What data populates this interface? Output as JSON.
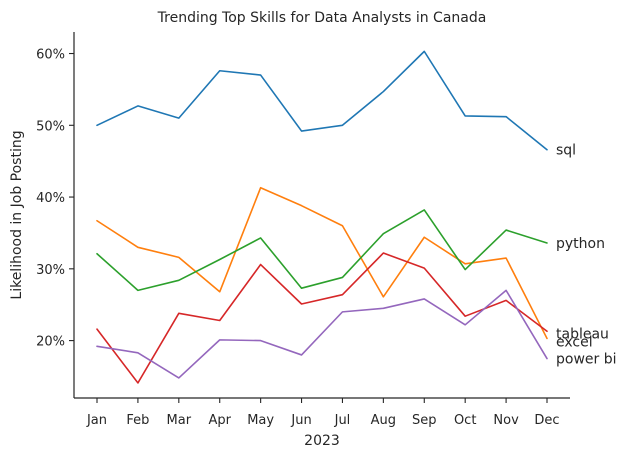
{
  "chart_data": {
    "type": "line",
    "title": "Trending Top Skills for Data Analysts in Canada",
    "xlabel": "2023",
    "ylabel": "Likelihood in Job Posting",
    "categories": [
      "Jan",
      "Feb",
      "Mar",
      "Apr",
      "May",
      "Jun",
      "Jul",
      "Aug",
      "Sep",
      "Oct",
      "Nov",
      "Dec"
    ],
    "ylim": [
      12,
      63
    ],
    "yticks": [
      20,
      30,
      40,
      50,
      60
    ],
    "ytick_labels": [
      "20%",
      "30%",
      "40%",
      "50%",
      "60%"
    ],
    "grid": false,
    "legend": "labels at line ends",
    "series": [
      {
        "name": "sql",
        "color": "#1f77b4",
        "values": [
          50.0,
          52.7,
          51.0,
          57.6,
          57.0,
          49.2,
          50.0,
          54.7,
          60.3,
          51.3,
          51.2,
          46.6
        ]
      },
      {
        "name": "excel",
        "color": "#ff7f0e",
        "values": [
          36.7,
          33.0,
          31.6,
          26.8,
          41.3,
          38.8,
          36.0,
          26.1,
          34.4,
          30.7,
          31.5,
          20.3
        ]
      },
      {
        "name": "python",
        "color": "#2ca02c",
        "values": [
          32.1,
          27.0,
          28.4,
          31.3,
          34.3,
          27.3,
          28.8,
          34.9,
          38.2,
          29.9,
          35.4,
          33.6
        ]
      },
      {
        "name": "tableau",
        "color": "#d62728",
        "values": [
          21.6,
          14.1,
          23.8,
          22.8,
          30.6,
          25.1,
          26.4,
          32.2,
          30.1,
          23.4,
          25.6,
          21.3
        ]
      },
      {
        "name": "power bi",
        "color": "#9467bd",
        "values": [
          19.2,
          18.3,
          14.8,
          20.1,
          20.0,
          18.0,
          24.0,
          24.5,
          25.8,
          22.2,
          27.0,
          17.5
        ]
      }
    ]
  }
}
